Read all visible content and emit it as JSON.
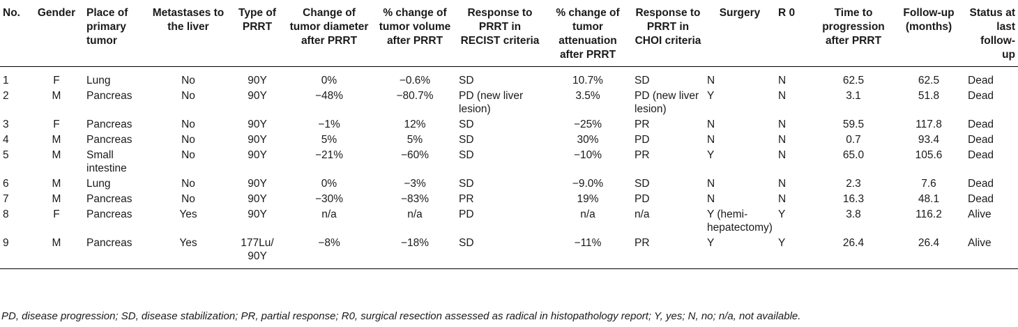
{
  "table": {
    "headers": [
      "No.",
      "Gender",
      "Place of primary tumor",
      "Metastases to the liver",
      "Type of PRRT",
      "Change of tumor diameter after PRRT",
      "% change of tumor volume after PRRT",
      "Response to PRRT in RECIST criteria",
      "% change of tumor attenuation after PRRT",
      "Response to PRRT in CHOI criteria",
      "Surgery",
      "R 0",
      "Time to progression after PRRT",
      "Follow-up (months)",
      "Status at last follow-up"
    ],
    "rows": [
      [
        "1",
        "F",
        "Lung",
        "No",
        "90Y",
        "0%",
        "−0.6%",
        "SD",
        "10.7%",
        "SD",
        "N",
        "N",
        "62.5",
        "62.5",
        "Dead"
      ],
      [
        "2",
        "M",
        "Pancreas",
        "No",
        "90Y",
        "−48%",
        "−80.7%",
        "PD (new liver lesion)",
        "3.5%",
        "PD (new liver lesion)",
        "Y",
        "N",
        "3.1",
        "51.8",
        "Dead"
      ],
      [
        "3",
        "F",
        "Pancreas",
        "No",
        "90Y",
        "−1%",
        "12%",
        "SD",
        "−25%",
        "PR",
        "N",
        "N",
        "59.5",
        "117.8",
        "Dead"
      ],
      [
        "4",
        "M",
        "Pancreas",
        "No",
        "90Y",
        "5%",
        "5%",
        "SD",
        "30%",
        "PD",
        "N",
        "N",
        "0.7",
        "93.4",
        "Dead"
      ],
      [
        "5",
        "M",
        "Small intestine",
        "No",
        "90Y",
        "−21%",
        "−60%",
        "SD",
        "−10%",
        "PR",
        "Y",
        "N",
        "65.0",
        "105.6",
        "Dead"
      ],
      [
        "6",
        "M",
        "Lung",
        "No",
        "90Y",
        "0%",
        "−3%",
        "SD",
        "−9.0%",
        "SD",
        "N",
        "N",
        "2.3",
        "7.6",
        "Dead"
      ],
      [
        "7",
        "M",
        "Pancreas",
        "No",
        "90Y",
        "−30%",
        "−83%",
        "PR",
        "19%",
        "PD",
        "N",
        "N",
        "16.3",
        "48.1",
        "Dead"
      ],
      [
        "8",
        "F",
        "Pancreas",
        "Yes",
        "90Y",
        "n/a",
        "n/a",
        "PD",
        "n/a",
        "n/a",
        "Y (hemi-hepatectomy)",
        "Y",
        "3.8",
        "116.2",
        "Alive"
      ],
      [
        "9",
        "M",
        "Pancreas",
        "Yes",
        "177Lu/ 90Y",
        "−8%",
        "−18%",
        "SD",
        "−11%",
        "PR",
        "Y",
        "Y",
        "26.4",
        "26.4",
        "Alive"
      ]
    ]
  },
  "footnote": "PD, disease progression; SD, disease stabilization; PR, partial response; R0, surgical resection assessed as radical in histopathology report; Y, yes; N, no; n/a, not available."
}
